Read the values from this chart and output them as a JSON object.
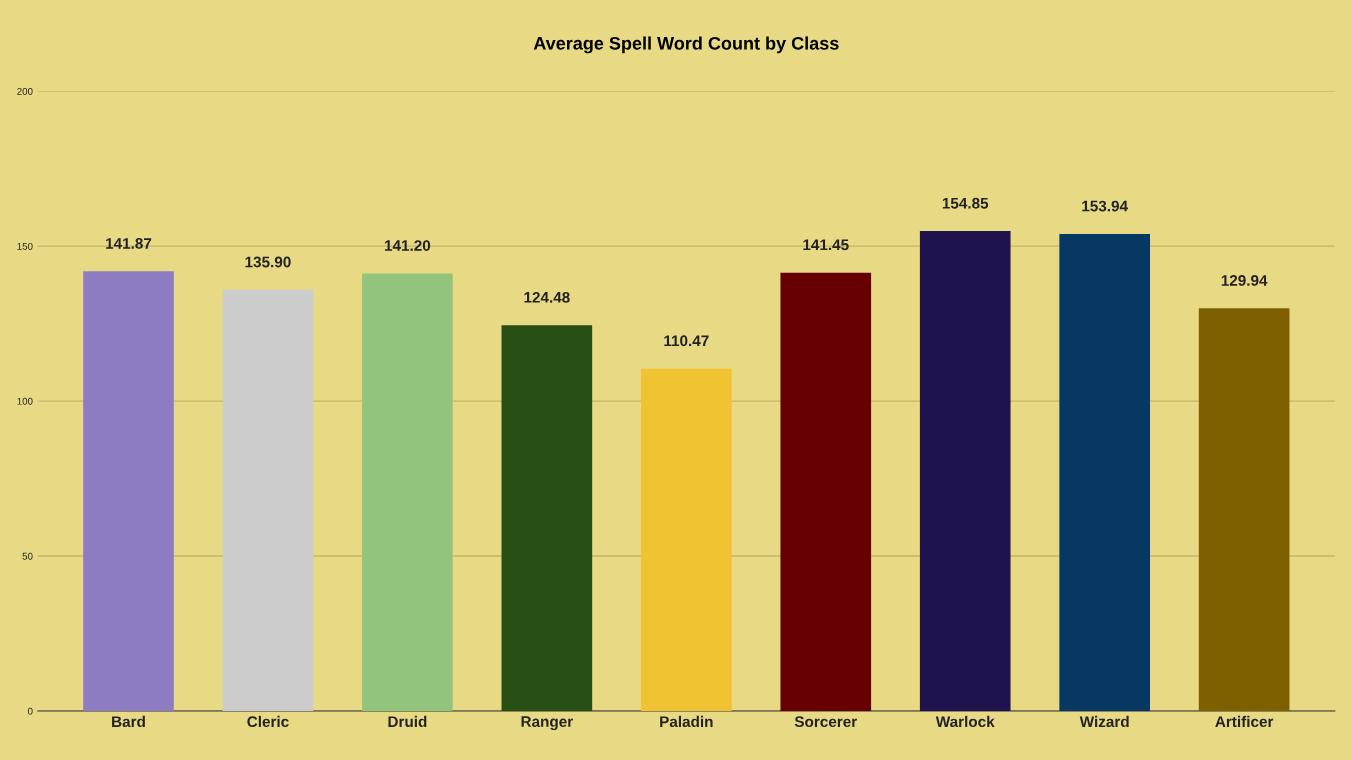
{
  "chart_data": {
    "type": "bar",
    "title": "Average Spell Word Count by Class",
    "categories": [
      "Bard",
      "Cleric",
      "Druid",
      "Ranger",
      "Paladin",
      "Sorcerer",
      "Warlock",
      "Wizard",
      "Artificer"
    ],
    "values": [
      141.87,
      135.9,
      141.2,
      124.48,
      110.47,
      141.45,
      154.85,
      153.94,
      129.94
    ],
    "value_labels": [
      "141.87",
      "135.90",
      "141.20",
      "124.48",
      "110.47",
      "141.45",
      "154.85",
      "153.94",
      "129.94"
    ],
    "colors": [
      "#8e7cc3",
      "#cccccc",
      "#93c47d",
      "#274e13",
      "#f1c232",
      "#660000",
      "#20124d",
      "#073763",
      "#7f6000"
    ],
    "ylim": [
      0,
      200
    ],
    "yticks": [
      0,
      50,
      100,
      150,
      200
    ],
    "grid": "y",
    "legend": false
  }
}
